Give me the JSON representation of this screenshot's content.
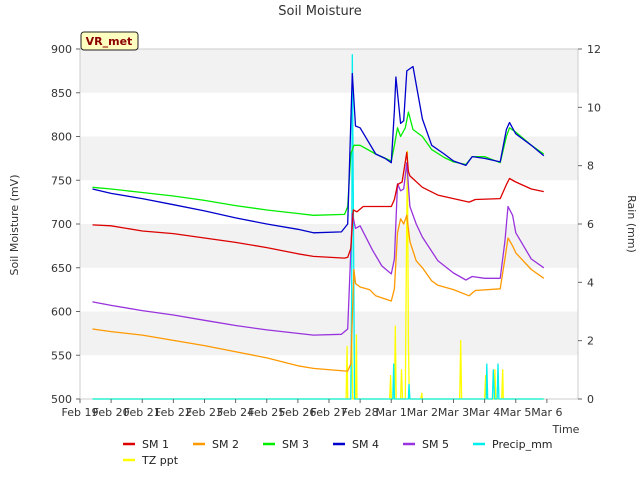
{
  "chart_data": {
    "type": "line",
    "title": "Soil Moisture",
    "xlabel": "Time",
    "ylabel": "Soil Moisture (mV)",
    "y2label": "Rain (mm)",
    "badge": "VR_met",
    "xlim": [
      0,
      16
    ],
    "ylim": [
      500,
      900
    ],
    "y2lim": [
      0,
      12
    ],
    "grid": "horizontal bands",
    "x_ticks": [
      {
        "pos": 0,
        "label": "Feb 19"
      },
      {
        "pos": 1,
        "label": "Feb 20"
      },
      {
        "pos": 2,
        "label": "Feb 21"
      },
      {
        "pos": 3,
        "label": "Feb 22"
      },
      {
        "pos": 4,
        "label": "Feb 23"
      },
      {
        "pos": 5,
        "label": "Feb 24"
      },
      {
        "pos": 6,
        "label": "Feb 25"
      },
      {
        "pos": 7,
        "label": "Feb 26"
      },
      {
        "pos": 8,
        "label": "Feb 27"
      },
      {
        "pos": 9,
        "label": "Feb 28"
      },
      {
        "pos": 10,
        "label": "Mar 1"
      },
      {
        "pos": 11,
        "label": "Mar 2"
      },
      {
        "pos": 12,
        "label": "Mar 3"
      },
      {
        "pos": 13,
        "label": "Mar 4"
      },
      {
        "pos": 14,
        "label": "Mar 5"
      },
      {
        "pos": 15,
        "label": "Mar 6"
      }
    ],
    "y_ticks": [
      "500",
      "550",
      "600",
      "650",
      "700",
      "750",
      "800",
      "850",
      "900"
    ],
    "y2_ticks": [
      "0",
      "2",
      "4",
      "6",
      "8",
      "10",
      "12"
    ],
    "legend": [
      {
        "name": "SM 1",
        "color": "#dd0000"
      },
      {
        "name": "SM 2",
        "color": "#ff9900"
      },
      {
        "name": "SM 3",
        "color": "#00ee00"
      },
      {
        "name": "SM 4",
        "color": "#0000cc"
      },
      {
        "name": "SM 5",
        "color": "#9933dd"
      },
      {
        "name": "Precip_mm",
        "color": "#00eeee"
      },
      {
        "name": "TZ ppt",
        "color": "#ffff00"
      }
    ],
    "series": [
      {
        "name": "SM 1",
        "axis": "left",
        "color": "#dd0000",
        "points": [
          [
            0.4,
            699
          ],
          [
            1,
            698
          ],
          [
            2,
            692
          ],
          [
            3,
            689
          ],
          [
            4,
            684
          ],
          [
            5,
            679
          ],
          [
            6,
            673
          ],
          [
            7,
            666
          ],
          [
            7.5,
            663
          ],
          [
            8.5,
            661
          ],
          [
            8.6,
            662
          ],
          [
            8.7,
            672
          ],
          [
            8.78,
            716
          ],
          [
            8.9,
            714
          ],
          [
            9.1,
            720
          ],
          [
            9.5,
            720
          ],
          [
            10,
            720
          ],
          [
            10.1,
            728
          ],
          [
            10.2,
            745
          ],
          [
            10.35,
            748
          ],
          [
            10.5,
            782
          ],
          [
            10.55,
            760
          ],
          [
            10.6,
            755
          ],
          [
            11,
            742
          ],
          [
            11.5,
            733
          ],
          [
            12,
            729
          ],
          [
            12.5,
            725
          ],
          [
            12.7,
            728
          ],
          [
            13.5,
            729
          ],
          [
            13.7,
            745
          ],
          [
            13.8,
            752
          ],
          [
            14,
            748
          ],
          [
            14.5,
            740
          ],
          [
            14.9,
            737
          ]
        ]
      },
      {
        "name": "SM 2",
        "axis": "left",
        "color": "#ff9900",
        "points": [
          [
            0.4,
            580
          ],
          [
            1,
            577
          ],
          [
            2,
            573
          ],
          [
            3,
            567
          ],
          [
            4,
            561
          ],
          [
            5,
            554
          ],
          [
            6,
            547
          ],
          [
            7,
            538
          ],
          [
            7.5,
            535
          ],
          [
            8.5,
            532
          ],
          [
            8.6,
            532
          ],
          [
            8.7,
            540
          ],
          [
            8.8,
            648
          ],
          [
            8.85,
            632
          ],
          [
            9,
            628
          ],
          [
            9.3,
            625
          ],
          [
            9.5,
            618
          ],
          [
            10,
            612
          ],
          [
            10.1,
            626
          ],
          [
            10.2,
            690
          ],
          [
            10.3,
            706
          ],
          [
            10.4,
            700
          ],
          [
            10.5,
            710
          ],
          [
            10.6,
            680
          ],
          [
            10.8,
            658
          ],
          [
            11,
            650
          ],
          [
            11.3,
            635
          ],
          [
            11.5,
            630
          ],
          [
            12,
            625
          ],
          [
            12.5,
            618
          ],
          [
            12.7,
            624
          ],
          [
            13.5,
            626
          ],
          [
            13.65,
            660
          ],
          [
            13.75,
            684
          ],
          [
            13.9,
            675
          ],
          [
            14,
            667
          ],
          [
            14.5,
            648
          ],
          [
            14.9,
            638
          ]
        ]
      },
      {
        "name": "SM 3",
        "axis": "left",
        "color": "#00ee00",
        "points": [
          [
            0.4,
            742
          ],
          [
            1,
            740
          ],
          [
            2,
            736
          ],
          [
            3,
            732
          ],
          [
            4,
            727
          ],
          [
            5,
            721
          ],
          [
            6,
            716
          ],
          [
            7,
            712
          ],
          [
            7.5,
            710
          ],
          [
            8.5,
            711
          ],
          [
            8.6,
            720
          ],
          [
            8.7,
            780
          ],
          [
            8.8,
            790
          ],
          [
            9,
            790
          ],
          [
            9.5,
            780
          ],
          [
            10,
            772
          ],
          [
            10.1,
            790
          ],
          [
            10.2,
            810
          ],
          [
            10.3,
            800
          ],
          [
            10.45,
            810
          ],
          [
            10.55,
            828
          ],
          [
            10.7,
            808
          ],
          [
            11,
            800
          ],
          [
            11.3,
            785
          ],
          [
            11.7,
            776
          ],
          [
            12,
            771
          ],
          [
            12.4,
            768
          ],
          [
            12.6,
            777
          ],
          [
            13,
            777
          ],
          [
            13.5,
            770
          ],
          [
            13.7,
            800
          ],
          [
            13.8,
            810
          ],
          [
            14,
            805
          ],
          [
            14.5,
            790
          ],
          [
            14.9,
            780
          ]
        ]
      },
      {
        "name": "SM 4",
        "axis": "left",
        "color": "#0000cc",
        "points": [
          [
            0.4,
            740
          ],
          [
            1,
            735
          ],
          [
            2,
            729
          ],
          [
            3,
            722
          ],
          [
            4,
            715
          ],
          [
            5,
            707
          ],
          [
            6,
            700
          ],
          [
            7,
            694
          ],
          [
            7.5,
            690
          ],
          [
            8.4,
            691
          ],
          [
            8.6,
            700
          ],
          [
            8.75,
            872
          ],
          [
            8.85,
            812
          ],
          [
            9,
            810
          ],
          [
            9.5,
            780
          ],
          [
            9.8,
            775
          ],
          [
            10,
            770
          ],
          [
            10.1,
            830
          ],
          [
            10.15,
            868
          ],
          [
            10.3,
            815
          ],
          [
            10.4,
            818
          ],
          [
            10.5,
            875
          ],
          [
            10.7,
            880
          ],
          [
            10.85,
            850
          ],
          [
            11,
            820
          ],
          [
            11.3,
            790
          ],
          [
            11.7,
            780
          ],
          [
            12,
            772
          ],
          [
            12.4,
            767
          ],
          [
            12.6,
            777
          ],
          [
            13,
            775
          ],
          [
            13.5,
            771
          ],
          [
            13.7,
            808
          ],
          [
            13.8,
            816
          ],
          [
            14,
            803
          ],
          [
            14.5,
            790
          ],
          [
            14.9,
            778
          ]
        ]
      },
      {
        "name": "SM 5",
        "axis": "left",
        "color": "#9933dd",
        "points": [
          [
            0.4,
            611
          ],
          [
            1,
            607
          ],
          [
            2,
            601
          ],
          [
            3,
            596
          ],
          [
            4,
            590
          ],
          [
            5,
            584
          ],
          [
            6,
            579
          ],
          [
            7,
            575
          ],
          [
            7.5,
            573
          ],
          [
            8.4,
            574
          ],
          [
            8.6,
            580
          ],
          [
            8.75,
            712
          ],
          [
            8.85,
            695
          ],
          [
            9,
            698
          ],
          [
            9.4,
            670
          ],
          [
            9.7,
            652
          ],
          [
            10,
            643
          ],
          [
            10.1,
            660
          ],
          [
            10.2,
            746
          ],
          [
            10.3,
            738
          ],
          [
            10.4,
            740
          ],
          [
            10.5,
            770
          ],
          [
            10.6,
            720
          ],
          [
            10.8,
            700
          ],
          [
            11,
            685
          ],
          [
            11.5,
            658
          ],
          [
            12,
            644
          ],
          [
            12.4,
            636
          ],
          [
            12.6,
            640
          ],
          [
            13,
            638
          ],
          [
            13.5,
            638
          ],
          [
            13.65,
            680
          ],
          [
            13.75,
            720
          ],
          [
            13.9,
            710
          ],
          [
            14,
            690
          ],
          [
            14.5,
            660
          ],
          [
            14.9,
            650
          ]
        ]
      },
      {
        "name": "Precip_mm",
        "axis": "right",
        "color": "#00eeee",
        "points": [
          [
            0.4,
            0
          ],
          [
            8.7,
            0
          ],
          [
            8.73,
            4
          ],
          [
            8.75,
            11.8
          ],
          [
            8.78,
            7
          ],
          [
            8.82,
            0
          ],
          [
            10.05,
            0
          ],
          [
            10.08,
            1.2
          ],
          [
            10.1,
            0
          ],
          [
            10.55,
            0
          ],
          [
            10.57,
            0.5
          ],
          [
            10.6,
            0
          ],
          [
            13.05,
            0
          ],
          [
            13.07,
            1.2
          ],
          [
            13.1,
            0
          ],
          [
            13.25,
            0
          ],
          [
            13.28,
            1.0
          ],
          [
            13.32,
            0
          ],
          [
            13.4,
            0
          ],
          [
            13.43,
            1.2
          ],
          [
            13.46,
            0
          ],
          [
            14.9,
            0
          ]
        ]
      },
      {
        "name": "TZ ppt",
        "axis": "right",
        "color": "#ffff00",
        "points": [
          [
            0.4,
            0
          ],
          [
            8.55,
            0
          ],
          [
            8.58,
            1.8
          ],
          [
            8.6,
            0
          ],
          [
            8.7,
            0
          ],
          [
            8.73,
            2.2
          ],
          [
            8.76,
            0
          ],
          [
            8.85,
            0
          ],
          [
            8.88,
            2.2
          ],
          [
            8.9,
            0
          ],
          [
            9.95,
            0
          ],
          [
            9.98,
            0.8
          ],
          [
            10,
            0
          ],
          [
            10.1,
            0
          ],
          [
            10.13,
            2.5
          ],
          [
            10.16,
            0
          ],
          [
            10.3,
            0
          ],
          [
            10.33,
            1.0
          ],
          [
            10.36,
            0
          ],
          [
            10.45,
            0
          ],
          [
            10.48,
            4
          ],
          [
            10.52,
            8.5
          ],
          [
            10.55,
            2
          ],
          [
            10.58,
            0
          ],
          [
            10.95,
            0
          ],
          [
            10.98,
            0.2
          ],
          [
            11,
            0
          ],
          [
            12.2,
            0
          ],
          [
            12.23,
            2.0
          ],
          [
            12.26,
            0
          ],
          [
            13.0,
            0
          ],
          [
            13.03,
            0.8
          ],
          [
            13.05,
            0
          ],
          [
            13.3,
            0
          ],
          [
            13.33,
            1.0
          ],
          [
            13.36,
            0
          ],
          [
            13.55,
            0
          ],
          [
            13.58,
            1.0
          ],
          [
            13.6,
            0
          ],
          [
            14.9,
            0
          ]
        ]
      }
    ]
  }
}
